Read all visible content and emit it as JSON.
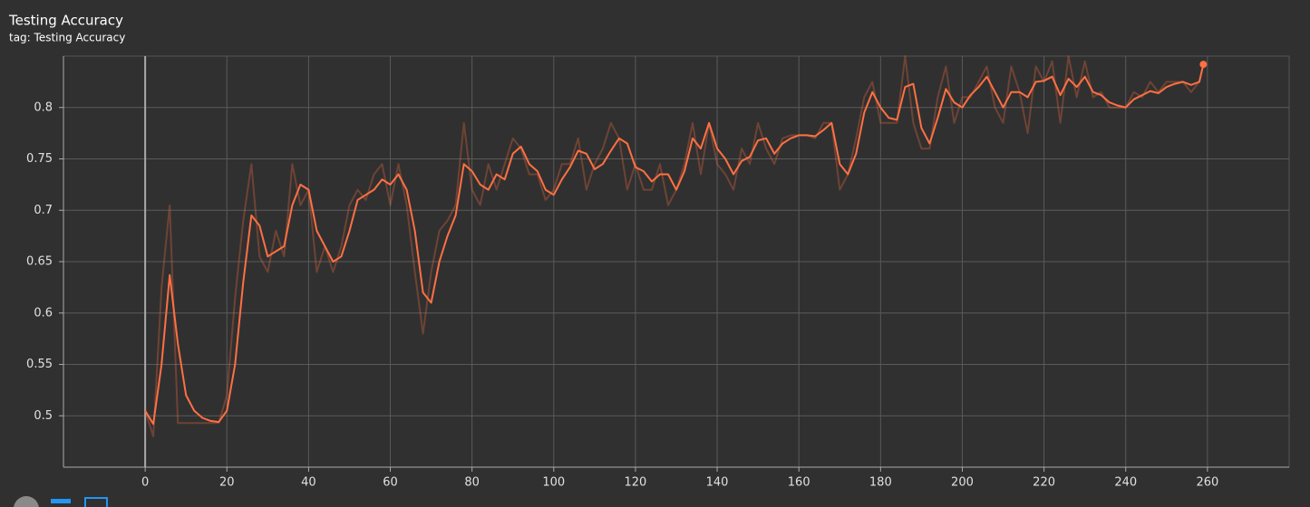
{
  "chart_data": {
    "type": "line",
    "title": "Testing Accuracy",
    "subtitle": "tag: Testing Accuracy",
    "x": [
      0,
      2,
      4,
      6,
      8,
      10,
      12,
      14,
      16,
      18,
      20,
      22,
      24,
      26,
      28,
      30,
      32,
      34,
      36,
      38,
      40,
      42,
      44,
      46,
      48,
      50,
      52,
      54,
      56,
      58,
      60,
      62,
      64,
      66,
      68,
      70,
      72,
      74,
      76,
      78,
      80,
      82,
      84,
      86,
      88,
      90,
      92,
      94,
      96,
      98,
      100,
      102,
      104,
      106,
      108,
      110,
      112,
      114,
      116,
      118,
      120,
      122,
      124,
      126,
      128,
      130,
      132,
      134,
      136,
      138,
      140,
      142,
      144,
      146,
      148,
      150,
      152,
      154,
      156,
      158,
      160,
      162,
      164,
      166,
      168,
      170,
      172,
      174,
      176,
      178,
      180,
      182,
      184,
      186,
      188,
      190,
      192,
      194,
      196,
      198,
      200,
      202,
      204,
      206,
      208,
      210,
      212,
      214,
      216,
      218,
      220,
      222,
      224,
      226,
      228,
      230,
      232,
      234,
      236,
      238,
      240,
      242,
      244,
      246,
      248,
      250,
      252,
      254,
      256,
      258,
      259
    ],
    "series": [
      {
        "color": "#ff7043",
        "opacity": 0.3,
        "values": [
          0.505,
          0.48,
          0.625,
          0.705,
          0.493,
          0.493,
          0.493,
          0.493,
          0.493,
          0.493,
          0.52,
          0.615,
          0.69,
          0.745,
          0.655,
          0.64,
          0.68,
          0.655,
          0.745,
          0.705,
          0.72,
          0.64,
          0.665,
          0.64,
          0.665,
          0.705,
          0.72,
          0.71,
          0.735,
          0.745,
          0.705,
          0.745,
          0.705,
          0.64,
          0.58,
          0.64,
          0.68,
          0.69,
          0.705,
          0.785,
          0.72,
          0.705,
          0.745,
          0.72,
          0.745,
          0.77,
          0.76,
          0.735,
          0.735,
          0.71,
          0.72,
          0.745,
          0.745,
          0.77,
          0.72,
          0.745,
          0.76,
          0.785,
          0.77,
          0.72,
          0.745,
          0.72,
          0.72,
          0.745,
          0.705,
          0.72,
          0.745,
          0.785,
          0.735,
          0.785,
          0.745,
          0.735,
          0.72,
          0.76,
          0.745,
          0.785,
          0.76,
          0.745,
          0.77,
          0.773,
          0.773,
          0.773,
          0.77,
          0.785,
          0.785,
          0.72,
          0.735,
          0.77,
          0.81,
          0.825,
          0.785,
          0.785,
          0.785,
          0.85,
          0.785,
          0.76,
          0.76,
          0.81,
          0.84,
          0.785,
          0.81,
          0.81,
          0.825,
          0.84,
          0.8,
          0.785,
          0.84,
          0.815,
          0.775,
          0.84,
          0.825,
          0.845,
          0.785,
          0.85,
          0.81,
          0.845,
          0.81,
          0.815,
          0.8,
          0.8,
          0.8,
          0.815,
          0.81,
          0.825,
          0.815,
          0.825,
          0.825,
          0.825,
          0.815,
          0.825,
          0.842
        ]
      },
      {
        "color": "#ff7043",
        "opacity": 1,
        "values": [
          0.505,
          0.492,
          0.55,
          0.637,
          0.57,
          0.52,
          0.505,
          0.498,
          0.495,
          0.494,
          0.505,
          0.55,
          0.63,
          0.695,
          0.685,
          0.655,
          0.66,
          0.665,
          0.705,
          0.725,
          0.72,
          0.68,
          0.665,
          0.65,
          0.655,
          0.68,
          0.71,
          0.715,
          0.72,
          0.73,
          0.725,
          0.735,
          0.72,
          0.68,
          0.62,
          0.61,
          0.65,
          0.675,
          0.695,
          0.745,
          0.738,
          0.725,
          0.72,
          0.735,
          0.73,
          0.755,
          0.762,
          0.745,
          0.738,
          0.72,
          0.715,
          0.73,
          0.742,
          0.758,
          0.755,
          0.74,
          0.745,
          0.758,
          0.77,
          0.765,
          0.742,
          0.738,
          0.728,
          0.735,
          0.735,
          0.72,
          0.738,
          0.77,
          0.76,
          0.785,
          0.76,
          0.75,
          0.735,
          0.748,
          0.752,
          0.768,
          0.77,
          0.755,
          0.765,
          0.77,
          0.773,
          0.773,
          0.772,
          0.778,
          0.785,
          0.745,
          0.735,
          0.755,
          0.795,
          0.815,
          0.8,
          0.79,
          0.788,
          0.82,
          0.823,
          0.78,
          0.765,
          0.79,
          0.818,
          0.805,
          0.8,
          0.812,
          0.82,
          0.83,
          0.815,
          0.8,
          0.815,
          0.815,
          0.81,
          0.825,
          0.826,
          0.83,
          0.812,
          0.828,
          0.82,
          0.83,
          0.815,
          0.812,
          0.805,
          0.802,
          0.8,
          0.808,
          0.812,
          0.816,
          0.814,
          0.82,
          0.823,
          0.825,
          0.822,
          0.825,
          0.842
        ]
      }
    ],
    "xlim": [
      -20,
      280
    ],
    "ylim": [
      0.45,
      0.85
    ],
    "xticks": [
      0,
      20,
      40,
      60,
      80,
      100,
      120,
      140,
      160,
      180,
      200,
      220,
      240,
      260
    ],
    "yticks": [
      0.5,
      0.55,
      0.6,
      0.65,
      0.7,
      0.75,
      0.8
    ],
    "grid": true
  }
}
